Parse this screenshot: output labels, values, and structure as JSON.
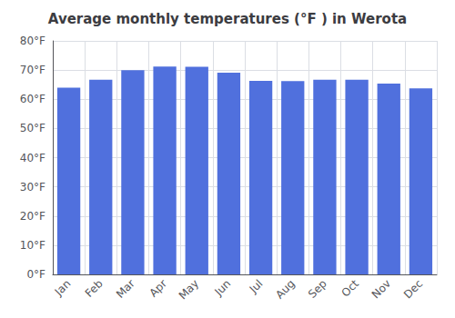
{
  "chart_data": {
    "type": "bar",
    "title": "Average monthly temperatures (°F ) in Werota",
    "categories": [
      "Jan",
      "Feb",
      "Mar",
      "Apr",
      "May",
      "Jun",
      "Jul",
      "Aug",
      "Sep",
      "Oct",
      "Nov",
      "Dec"
    ],
    "values": [
      64.0,
      66.7,
      70.0,
      71.2,
      71.1,
      69.1,
      66.3,
      66.2,
      66.7,
      66.7,
      65.4,
      63.7
    ],
    "ylim": [
      0,
      80
    ],
    "yticks": [
      {
        "value": 0,
        "label": "0°F"
      },
      {
        "value": 10,
        "label": "10°F"
      },
      {
        "value": 20,
        "label": "20°F"
      },
      {
        "value": 30,
        "label": "30°F"
      },
      {
        "value": 40,
        "label": "40°F"
      },
      {
        "value": 50,
        "label": "50°F"
      },
      {
        "value": 60,
        "label": "60°F"
      },
      {
        "value": 70,
        "label": "70°F"
      },
      {
        "value": 80,
        "label": "80°F"
      }
    ],
    "grid": true
  }
}
